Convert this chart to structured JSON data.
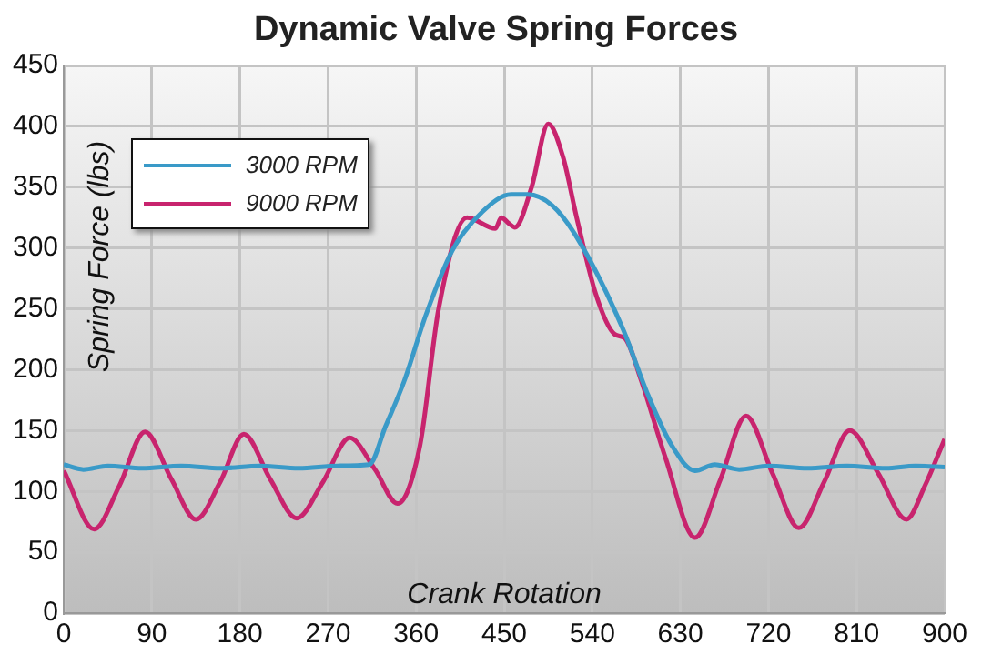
{
  "chart_data": {
    "type": "line",
    "title": "Dynamic Valve Spring Forces",
    "xlabel": "Crank Rotation",
    "ylabel": "Spring Force (lbs)",
    "xlim": [
      0,
      900
    ],
    "xticks": [
      0,
      90,
      180,
      270,
      360,
      450,
      540,
      630,
      720,
      810,
      900
    ],
    "ylim": [
      0,
      450
    ],
    "yticks": [
      0,
      50,
      100,
      150,
      200,
      250,
      300,
      350,
      400,
      450
    ],
    "grid": true,
    "legend": "top left",
    "marker": "none",
    "line_style": "solid",
    "series": [
      {
        "name": "3000 RPM",
        "color": "#3a9ac8",
        "x": [
          0,
          20,
          45,
          80,
          120,
          160,
          200,
          240,
          280,
          312,
          329,
          348,
          370,
          397,
          428,
          457,
          474,
          499,
          524,
          571,
          596,
          621,
          645,
          665,
          690,
          720,
          760,
          800,
          840,
          870,
          900
        ],
        "values": [
          122,
          118,
          121,
          119,
          121,
          119,
          121,
          119,
          121,
          122,
          154,
          191,
          245,
          298,
          330,
          344,
          344,
          335,
          309,
          234,
          181,
          138,
          117,
          122,
          118,
          121,
          119,
          121,
          119,
          121,
          120
        ]
      },
      {
        "name": "9000 RPM",
        "color": "#c8246e",
        "x": [
          0,
          31,
          57,
          83,
          110,
          135,
          160,
          184,
          211,
          238,
          265,
          292,
          318,
          341,
          364,
          383,
          412,
          441,
          447,
          455,
          461,
          478,
          495,
          510,
          524,
          544,
          563,
          573,
          590,
          615,
          645,
          671,
          697,
          724,
          751,
          777,
          803,
          832,
          861,
          880,
          900
        ],
        "values": [
          117,
          69,
          105,
          149,
          110,
          77,
          108,
          147,
          110,
          78,
          108,
          144,
          118,
          90,
          138,
          250,
          325,
          316,
          325,
          320,
          317,
          350,
          402,
          375,
          325,
          261,
          229,
          226,
          191,
          127,
          62,
          110,
          162,
          115,
          70,
          108,
          150,
          115,
          77,
          105,
          143
        ]
      }
    ]
  }
}
